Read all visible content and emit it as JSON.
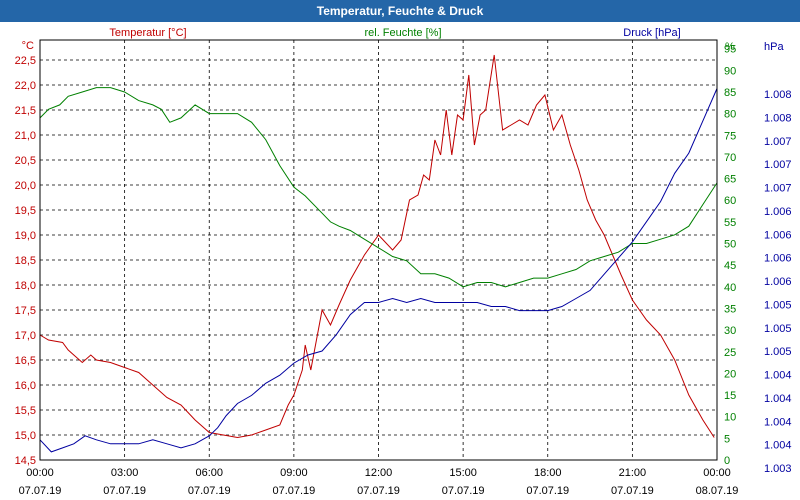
{
  "window": {
    "title": "Temperatur, Feuchte & Druck"
  },
  "chart_data": {
    "type": "line",
    "title": "Temperatur, Feuchte & Druck",
    "colors": {
      "temperature": "#c00000",
      "humidity": "#008000",
      "pressure": "#0000a0",
      "grid": "#000000",
      "background": "#ffffff"
    },
    "x_axis": {
      "range_hours": [
        0,
        24
      ],
      "ticks": [
        {
          "time": "00:00",
          "date": "07.07.19"
        },
        {
          "time": "03:00",
          "date": "07.07.19"
        },
        {
          "time": "06:00",
          "date": "07.07.19"
        },
        {
          "time": "09:00",
          "date": "07.07.19"
        },
        {
          "time": "12:00",
          "date": "07.07.19"
        },
        {
          "time": "15:00",
          "date": "07.07.19"
        },
        {
          "time": "18:00",
          "date": "07.07.19"
        },
        {
          "time": "21:00",
          "date": "07.07.19"
        },
        {
          "time": "00:00",
          "date": "08.07.19"
        }
      ]
    },
    "left_axis": {
      "unit": "°C",
      "range": [
        14.5,
        22.9
      ],
      "ticks": [
        "22,5",
        "22,0",
        "21,5",
        "21,0",
        "20,5",
        "20,0",
        "19,5",
        "19,0",
        "18,5",
        "18,0",
        "17,5",
        "17,0",
        "16,5",
        "16,0",
        "15,5",
        "15,0",
        "14,5"
      ]
    },
    "right_axis_humidity": {
      "unit": "%",
      "range": [
        0,
        97
      ],
      "ticks": [
        "95",
        "90",
        "85",
        "80",
        "75",
        "70",
        "65",
        "60",
        "55",
        "50",
        "45",
        "40",
        "35",
        "30",
        "25",
        "20",
        "15",
        "10",
        "5",
        "0"
      ]
    },
    "right_axis_pressure": {
      "unit": "hPa",
      "range": [
        1003.0,
        1008.2
      ],
      "ticks": [
        "1.008",
        "1.008",
        "1.007",
        "1.007",
        "1.007",
        "1.006",
        "1.006",
        "1.006",
        "1.006",
        "1.005",
        "1.005",
        "1.005",
        "1.004",
        "1.004",
        "1.004",
        "1.004",
        "1.003"
      ]
    },
    "series": [
      {
        "name": "Temperatur [°C]",
        "axis": "left",
        "points": [
          [
            0,
            17.0
          ],
          [
            0.3,
            16.9
          ],
          [
            0.8,
            16.85
          ],
          [
            1.0,
            16.7
          ],
          [
            1.2,
            16.6
          ],
          [
            1.5,
            16.45
          ],
          [
            1.8,
            16.6
          ],
          [
            2.0,
            16.5
          ],
          [
            2.5,
            16.45
          ],
          [
            3.0,
            16.35
          ],
          [
            3.5,
            16.25
          ],
          [
            4.0,
            16.0
          ],
          [
            4.5,
            15.75
          ],
          [
            5.0,
            15.6
          ],
          [
            5.5,
            15.3
          ],
          [
            6.0,
            15.05
          ],
          [
            6.5,
            15.0
          ],
          [
            7.0,
            14.95
          ],
          [
            7.5,
            15.0
          ],
          [
            8.0,
            15.1
          ],
          [
            8.5,
            15.2
          ],
          [
            8.8,
            15.6
          ],
          [
            9.0,
            15.8
          ],
          [
            9.3,
            16.3
          ],
          [
            9.4,
            16.8
          ],
          [
            9.6,
            16.3
          ],
          [
            10.0,
            17.5
          ],
          [
            10.3,
            17.2
          ],
          [
            10.6,
            17.6
          ],
          [
            11.0,
            18.1
          ],
          [
            11.5,
            18.6
          ],
          [
            12.0,
            19.0
          ],
          [
            12.5,
            18.7
          ],
          [
            12.8,
            18.9
          ],
          [
            13.1,
            19.7
          ],
          [
            13.4,
            19.8
          ],
          [
            13.6,
            20.2
          ],
          [
            13.8,
            20.1
          ],
          [
            14.0,
            20.9
          ],
          [
            14.2,
            20.6
          ],
          [
            14.4,
            21.5
          ],
          [
            14.6,
            20.6
          ],
          [
            14.8,
            21.4
          ],
          [
            15.0,
            21.3
          ],
          [
            15.2,
            22.2
          ],
          [
            15.4,
            20.8
          ],
          [
            15.6,
            21.4
          ],
          [
            15.8,
            21.5
          ],
          [
            16.1,
            22.6
          ],
          [
            16.4,
            21.1
          ],
          [
            16.7,
            21.2
          ],
          [
            17.0,
            21.3
          ],
          [
            17.3,
            21.2
          ],
          [
            17.6,
            21.6
          ],
          [
            17.9,
            21.8
          ],
          [
            18.2,
            21.1
          ],
          [
            18.5,
            21.4
          ],
          [
            18.8,
            20.8
          ],
          [
            19.1,
            20.3
          ],
          [
            19.4,
            19.7
          ],
          [
            19.7,
            19.3
          ],
          [
            20.0,
            19.0
          ],
          [
            20.3,
            18.6
          ],
          [
            20.6,
            18.2
          ],
          [
            21.0,
            17.7
          ],
          [
            21.5,
            17.3
          ],
          [
            22.0,
            17.0
          ],
          [
            22.5,
            16.5
          ],
          [
            23.0,
            15.8
          ],
          [
            23.5,
            15.3
          ],
          [
            23.9,
            14.95
          ]
        ]
      },
      {
        "name": "rel. Feuchte [%]",
        "axis": "right_humidity",
        "points": [
          [
            0,
            79
          ],
          [
            0.3,
            81
          ],
          [
            0.7,
            82
          ],
          [
            1.0,
            84
          ],
          [
            1.5,
            85
          ],
          [
            2.0,
            86
          ],
          [
            2.5,
            86
          ],
          [
            3.0,
            85
          ],
          [
            3.5,
            83
          ],
          [
            4.0,
            82
          ],
          [
            4.3,
            81
          ],
          [
            4.6,
            78
          ],
          [
            5.0,
            79
          ],
          [
            5.5,
            82
          ],
          [
            6.0,
            80
          ],
          [
            6.5,
            80
          ],
          [
            7.0,
            80
          ],
          [
            7.5,
            78
          ],
          [
            8.0,
            74
          ],
          [
            8.5,
            68
          ],
          [
            9.0,
            63
          ],
          [
            9.4,
            61
          ],
          [
            10.0,
            57
          ],
          [
            10.3,
            55
          ],
          [
            10.6,
            54
          ],
          [
            11.0,
            53
          ],
          [
            11.5,
            51
          ],
          [
            12.0,
            49
          ],
          [
            12.5,
            47
          ],
          [
            13.0,
            46
          ],
          [
            13.5,
            43
          ],
          [
            14.0,
            43
          ],
          [
            14.5,
            42
          ],
          [
            15.0,
            40
          ],
          [
            15.5,
            41
          ],
          [
            16.0,
            41
          ],
          [
            16.5,
            40
          ],
          [
            17.0,
            41
          ],
          [
            17.5,
            42
          ],
          [
            18.0,
            42
          ],
          [
            18.5,
            43
          ],
          [
            19.0,
            44
          ],
          [
            19.5,
            46
          ],
          [
            20.0,
            47
          ],
          [
            20.5,
            48
          ],
          [
            21.0,
            50
          ],
          [
            21.5,
            50
          ],
          [
            22.0,
            51
          ],
          [
            22.5,
            52
          ],
          [
            23.0,
            54
          ],
          [
            23.5,
            59
          ],
          [
            24.0,
            64
          ]
        ]
      },
      {
        "name": "Druck [hPa]",
        "axis": "right_pressure",
        "points": [
          [
            0,
            1003.25
          ],
          [
            0.4,
            1003.1
          ],
          [
            0.8,
            1003.15
          ],
          [
            1.2,
            1003.2
          ],
          [
            1.6,
            1003.3
          ],
          [
            2.0,
            1003.25
          ],
          [
            2.5,
            1003.2
          ],
          [
            3.0,
            1003.2
          ],
          [
            3.5,
            1003.2
          ],
          [
            4.0,
            1003.25
          ],
          [
            4.5,
            1003.2
          ],
          [
            5.0,
            1003.15
          ],
          [
            5.5,
            1003.2
          ],
          [
            6.0,
            1003.3
          ],
          [
            6.3,
            1003.4
          ],
          [
            6.6,
            1003.55
          ],
          [
            7.0,
            1003.7
          ],
          [
            7.5,
            1003.8
          ],
          [
            8.0,
            1003.95
          ],
          [
            8.5,
            1004.05
          ],
          [
            9.0,
            1004.2
          ],
          [
            9.5,
            1004.3
          ],
          [
            10.0,
            1004.35
          ],
          [
            10.5,
            1004.55
          ],
          [
            11.0,
            1004.8
          ],
          [
            11.5,
            1004.95
          ],
          [
            12.0,
            1004.95
          ],
          [
            12.5,
            1005.0
          ],
          [
            13.0,
            1004.95
          ],
          [
            13.5,
            1005.0
          ],
          [
            14.0,
            1004.95
          ],
          [
            14.5,
            1004.95
          ],
          [
            15.0,
            1004.95
          ],
          [
            15.5,
            1004.95
          ],
          [
            16.0,
            1004.9
          ],
          [
            16.5,
            1004.9
          ],
          [
            17.0,
            1004.85
          ],
          [
            17.5,
            1004.85
          ],
          [
            18.0,
            1004.85
          ],
          [
            18.5,
            1004.9
          ],
          [
            19.0,
            1005.0
          ],
          [
            19.5,
            1005.1
          ],
          [
            20.0,
            1005.3
          ],
          [
            20.5,
            1005.5
          ],
          [
            21.0,
            1005.7
          ],
          [
            21.5,
            1005.95
          ],
          [
            22.0,
            1006.2
          ],
          [
            22.5,
            1006.55
          ],
          [
            23.0,
            1006.8
          ],
          [
            23.5,
            1007.2
          ],
          [
            24.0,
            1007.6
          ]
        ]
      }
    ]
  }
}
